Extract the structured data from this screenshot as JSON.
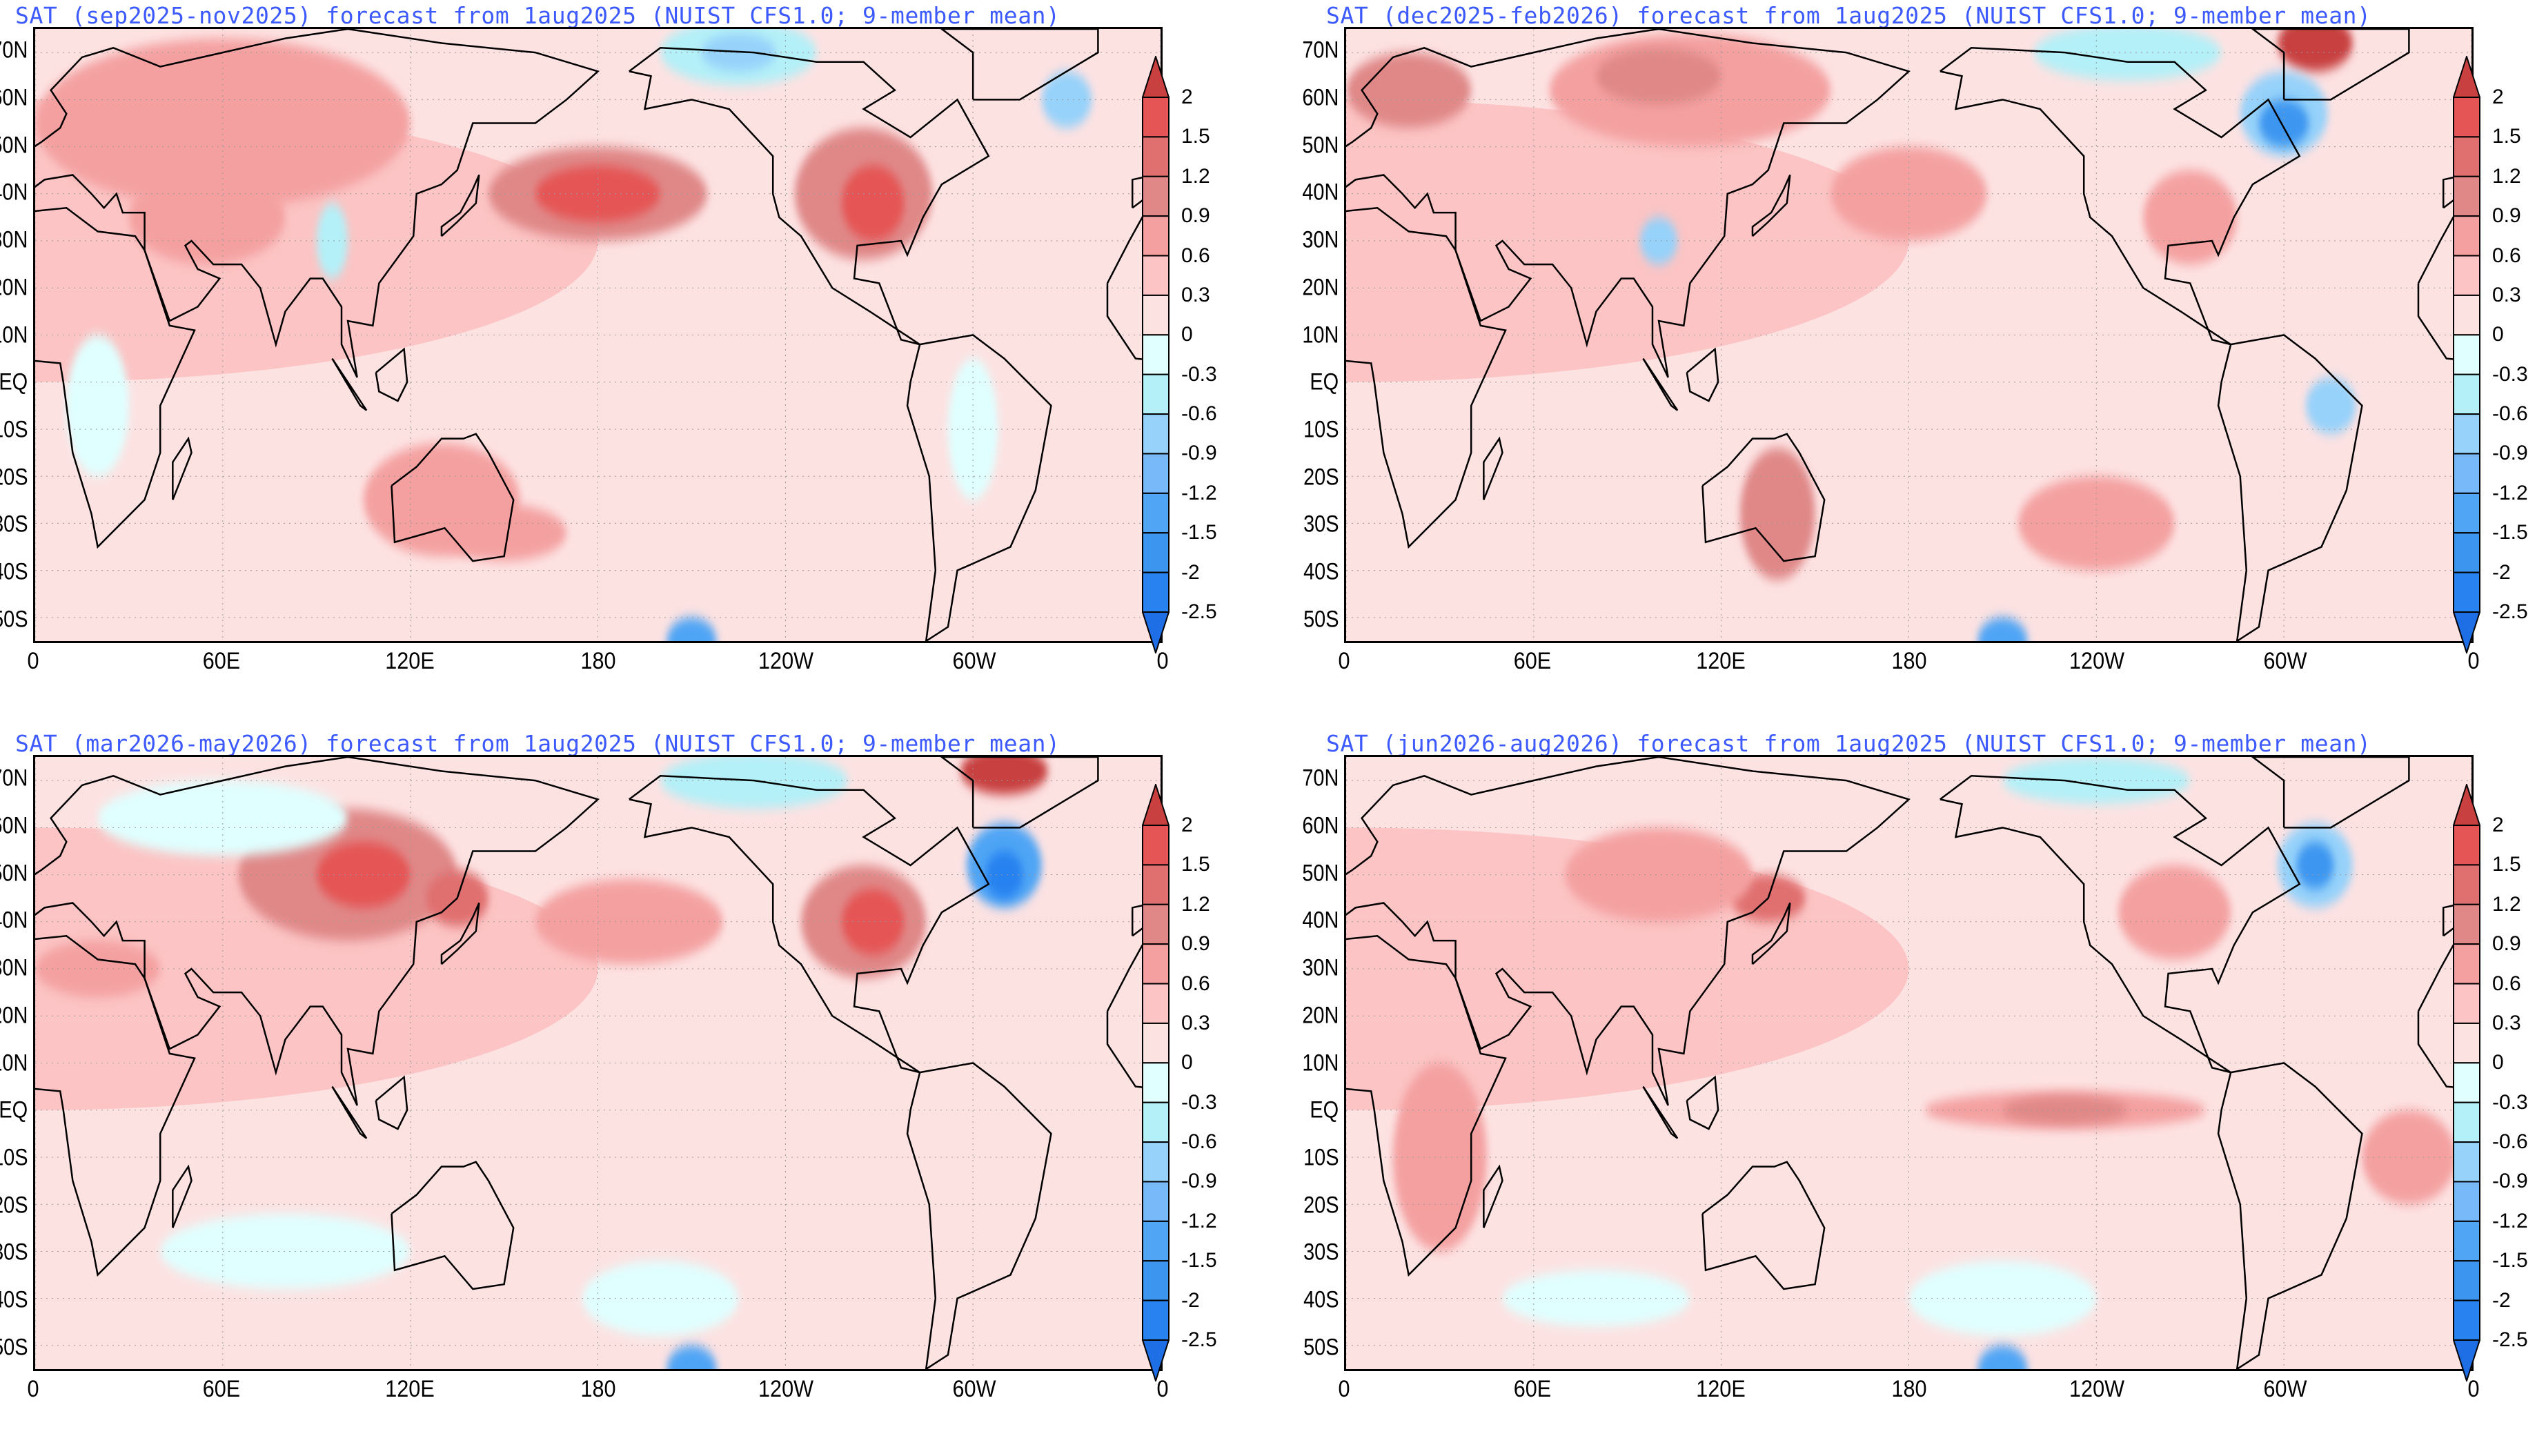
{
  "panels": [
    {
      "title": "SAT (sep2025-nov2025) forecast from 1aug2025 (NUIST CFS1.0; 9-member mean)",
      "season": "sep2025-nov2025"
    },
    {
      "title": "SAT (dec2025-feb2026) forecast from 1aug2025 (NUIST CFS1.0; 9-member mean)",
      "season": "dec2025-feb2026"
    },
    {
      "title": "SAT (mar2026-may2026) forecast from 1aug2025 (NUIST CFS1.0; 9-member mean)",
      "season": "mar2026-may2026"
    },
    {
      "title": "SAT (jun2026-aug2026) forecast from 1aug2025 (NUIST CFS1.0; 9-member mean)",
      "season": "jun2026-aug2026"
    }
  ],
  "chart_data": {
    "type": "heatmap",
    "variable": "SAT anomaly",
    "lat_labels": [
      "70N",
      "60N",
      "50N",
      "40N",
      "30N",
      "20N",
      "10N",
      "EQ",
      "10S",
      "20S",
      "30S",
      "40S",
      "50S"
    ],
    "lat_values": [
      70,
      60,
      50,
      40,
      30,
      20,
      10,
      0,
      -10,
      -20,
      -30,
      -40,
      -50
    ],
    "lon_labels": [
      "0",
      "60E",
      "120E",
      "180",
      "120W",
      "60W",
      "0"
    ],
    "lon_values": [
      0,
      60,
      120,
      180,
      240,
      300,
      360
    ],
    "lat_range": [
      -55,
      75
    ],
    "lon_range": [
      0,
      360
    ],
    "colorbar": {
      "labels": [
        "2",
        "1.5",
        "1.2",
        "0.9",
        "0.6",
        "0.3",
        "0",
        "-0.3",
        "-0.6",
        "-0.9",
        "-1.2",
        "-1.5",
        "-2",
        "-2.5"
      ],
      "levels": [
        2,
        1.5,
        1.2,
        0.9,
        0.6,
        0.3,
        0,
        -0.3,
        -0.6,
        -0.9,
        -1.2,
        -1.5,
        -2,
        -2.5
      ],
      "colors": [
        "#c84040",
        "#e55555",
        "#e07070",
        "#e08888",
        "#f4a0a0",
        "#fcc4c4",
        "#fde2e2",
        "#e0ffff",
        "#b4f0f8",
        "#96d2fa",
        "#78b9fa",
        "#50a5f5",
        "#3c96f0",
        "#2882f0",
        "#1e6ee6"
      ]
    }
  }
}
